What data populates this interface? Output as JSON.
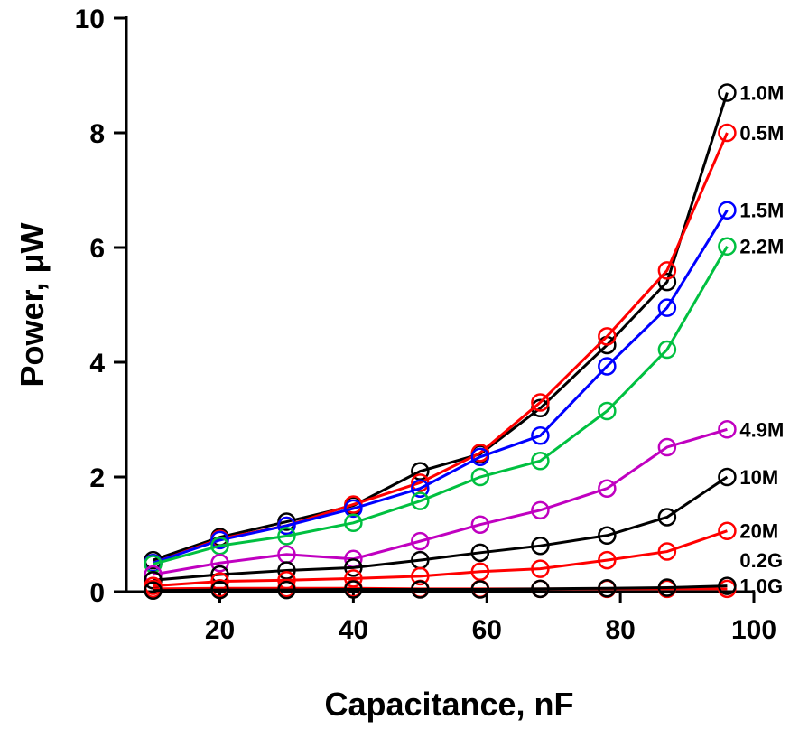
{
  "chart_data": {
    "type": "line",
    "title": "",
    "xlabel": "Capacitance, nF",
    "ylabel": "Power, μW",
    "xlim": [
      6,
      100
    ],
    "ylim": [
      0,
      10
    ],
    "xticks": [
      "20",
      "40",
      "60",
      "80",
      "100"
    ],
    "yticks": [
      "0",
      "2",
      "4",
      "6",
      "8",
      "10"
    ],
    "grid": false,
    "legend": "inline-right",
    "x": [
      10,
      20,
      30,
      40,
      50,
      59,
      68,
      78,
      87,
      96
    ],
    "series": [
      {
        "name": "1.0M",
        "color": "#000000",
        "values": [
          0.55,
          0.95,
          1.22,
          1.5,
          2.1,
          2.4,
          3.2,
          4.3,
          5.4,
          8.7
        ]
      },
      {
        "name": "0.5M",
        "color": "#ff0000",
        "values": [
          0.5,
          0.92,
          1.15,
          1.52,
          1.9,
          2.42,
          3.3,
          4.45,
          5.6,
          8.0
        ]
      },
      {
        "name": "1.5M",
        "color": "#0000ff",
        "values": [
          0.5,
          0.9,
          1.15,
          1.45,
          1.8,
          2.35,
          2.72,
          3.93,
          4.95,
          6.65
        ]
      },
      {
        "name": "2.2M",
        "color": "#00c040",
        "values": [
          0.48,
          0.8,
          0.97,
          1.2,
          1.58,
          2.0,
          2.28,
          3.15,
          4.22,
          6.02
        ]
      },
      {
        "name": "4.9M",
        "color": "#c000c0",
        "values": [
          0.3,
          0.5,
          0.65,
          0.57,
          0.88,
          1.17,
          1.42,
          1.8,
          2.52,
          2.83
        ]
      },
      {
        "name": "10M",
        "color": "#000000",
        "values": [
          0.2,
          0.3,
          0.37,
          0.42,
          0.55,
          0.68,
          0.8,
          0.98,
          1.3,
          2.0
        ]
      },
      {
        "name": "20M",
        "color": "#ff0000",
        "values": [
          0.1,
          0.18,
          0.2,
          0.23,
          0.27,
          0.35,
          0.4,
          0.55,
          0.7,
          1.06
        ]
      },
      {
        "name": "0.2G",
        "color": "#ff0000",
        "values": [
          0.05,
          0.06,
          0.06,
          0.06,
          0.05,
          0.05,
          0.05,
          0.05,
          0.05,
          0.05
        ]
      },
      {
        "name": "1.0G",
        "color": "#000000",
        "values": [
          0.02,
          0.03,
          0.03,
          0.04,
          0.04,
          0.04,
          0.05,
          0.06,
          0.07,
          0.1
        ]
      }
    ],
    "label_offsets_data": [
      "8.7",
      "8.0",
      "6.65",
      "6.02",
      "2.83",
      "2.0",
      "1.06",
      "0.55",
      "0.1"
    ]
  }
}
